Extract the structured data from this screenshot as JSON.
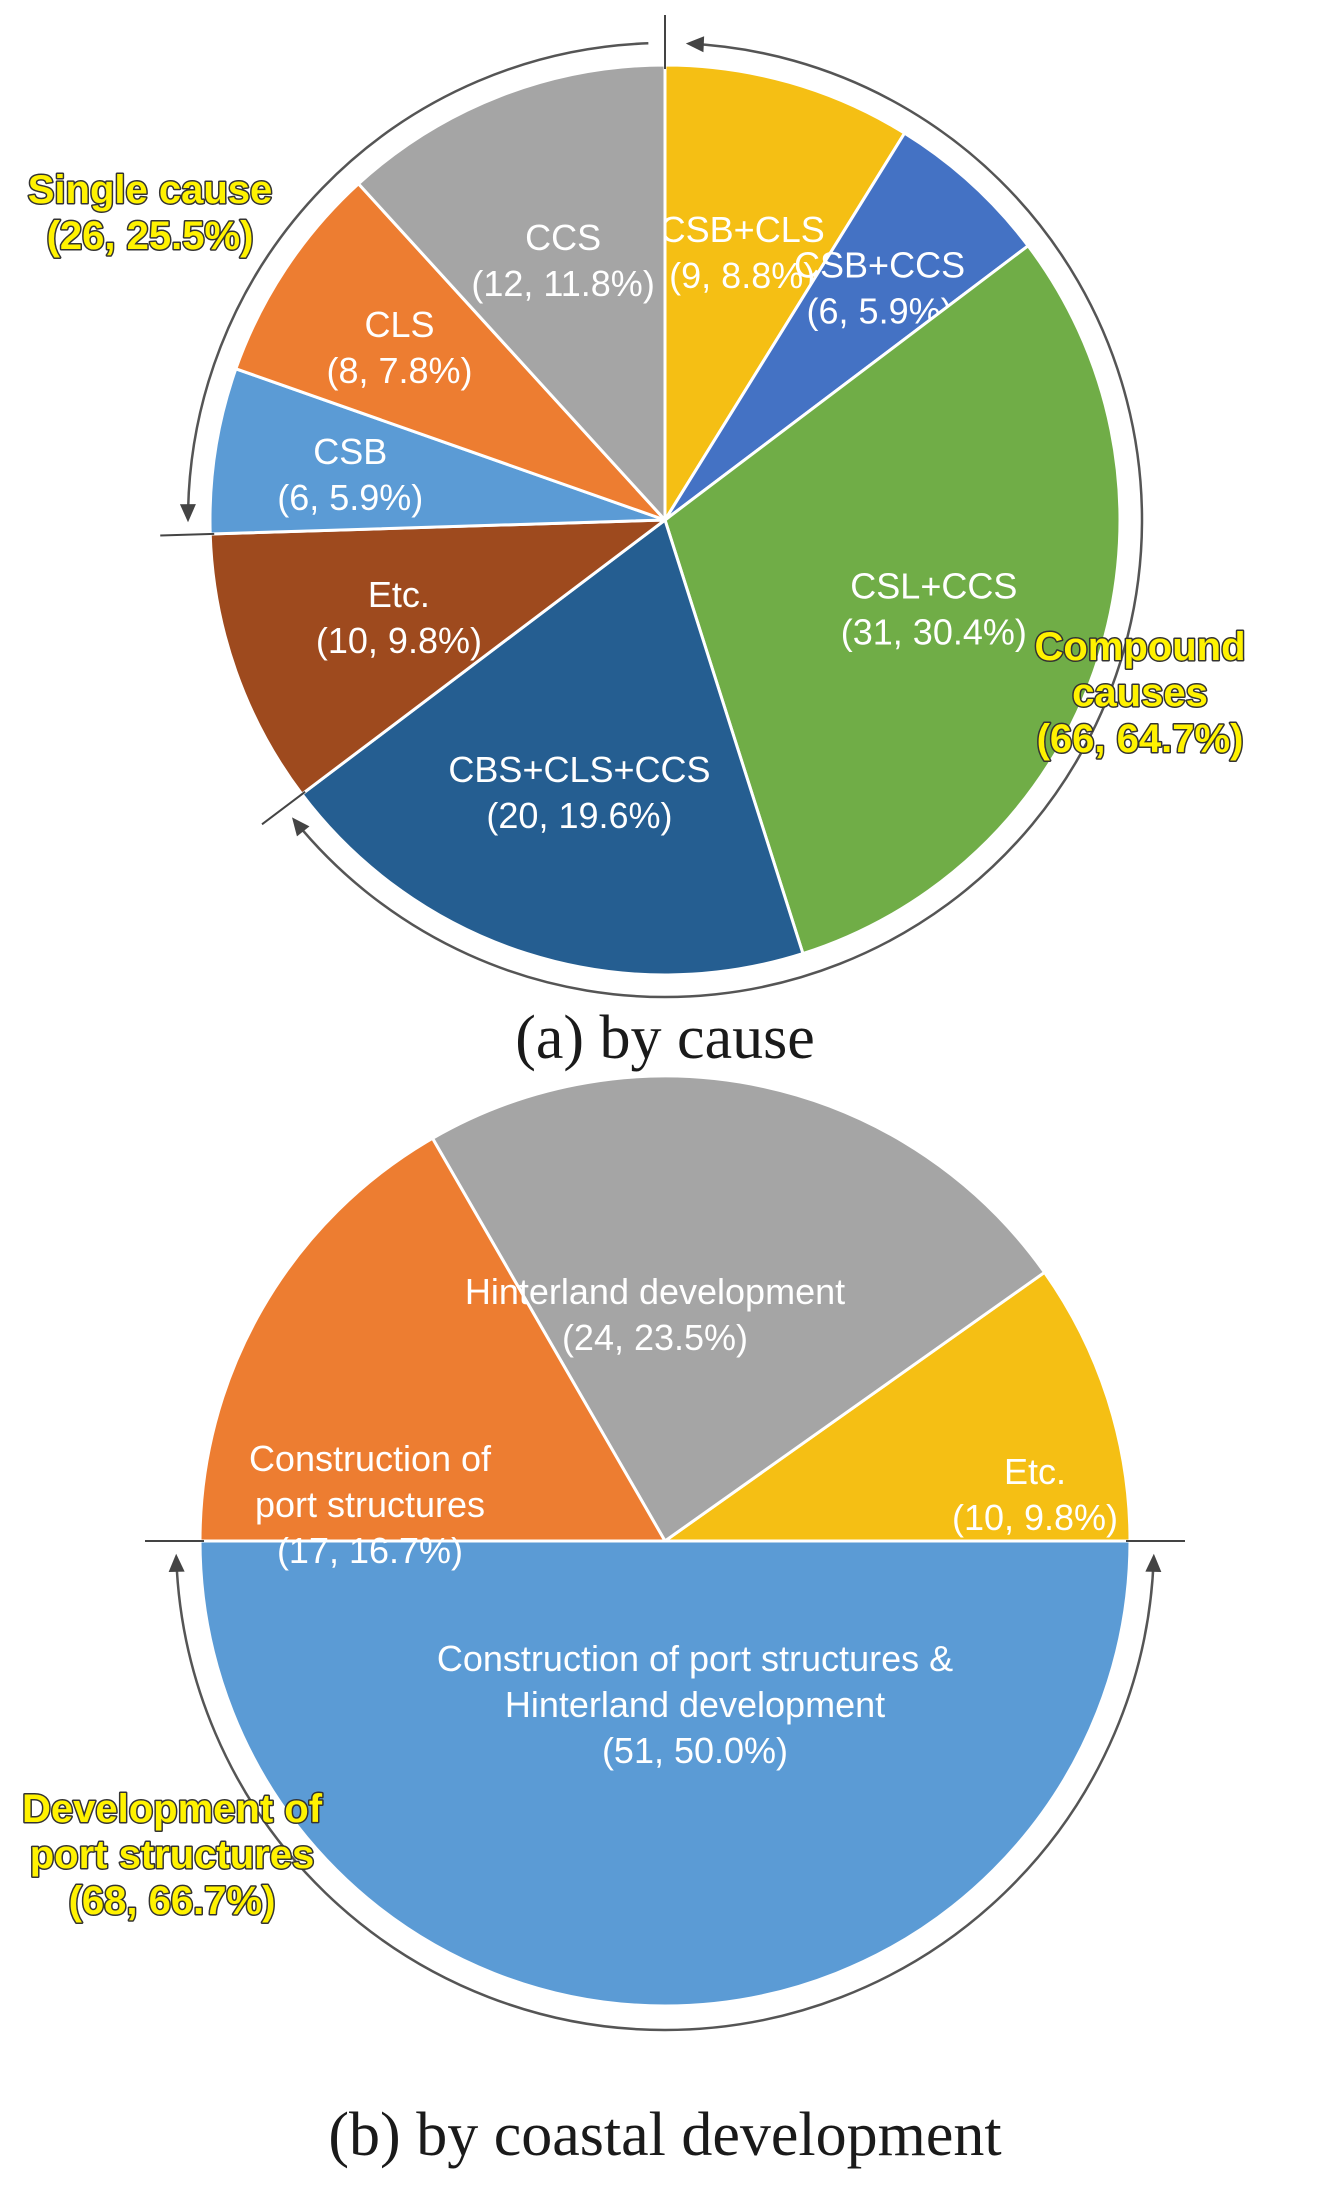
{
  "chart_data": [
    {
      "type": "pie",
      "title": "(a) by cause",
      "start_angle_deg": 0,
      "direction": "clockwise",
      "slices": [
        {
          "name": "CSB+CLS",
          "count": 9,
          "percent": 8.8,
          "value_label": "(9, 8.8%)",
          "color": "#f5bf14"
        },
        {
          "name": "CSB+CCS",
          "count": 6,
          "percent": 5.9,
          "value_label": "(6, 5.9%)",
          "color": "#4472c4"
        },
        {
          "name": "CSL+CCS",
          "count": 31,
          "percent": 30.4,
          "value_label": "(31, 30.4%)",
          "color": "#70ad47"
        },
        {
          "name": "CBS+CLS+CCS",
          "count": 20,
          "percent": 19.6,
          "value_label": "(20, 19.6%)",
          "color": "#255e91"
        },
        {
          "name": "Etc.",
          "count": 10,
          "percent": 9.8,
          "value_label": "(10, 9.8%)",
          "color": "#9e4a1e"
        },
        {
          "name": "CSB",
          "count": 6,
          "percent": 5.9,
          "value_label": "(6, 5.9%)",
          "color": "#5b9bd5"
        },
        {
          "name": "CLS",
          "count": 8,
          "percent": 7.8,
          "value_label": "(8, 7.8%)",
          "color": "#ed7d31"
        },
        {
          "name": "CCS",
          "count": 12,
          "percent": 11.8,
          "value_label": "(12, 11.8%)",
          "color": "#a5a5a5"
        }
      ],
      "groups": [
        {
          "lines": [
            "Single cause",
            "(26, 25.5%)"
          ]
        },
        {
          "lines": [
            "Compound",
            "causes",
            "(66, 64.7%)"
          ]
        }
      ]
    },
    {
      "type": "pie",
      "title": "(b) by coastal development",
      "start_angle_deg": 90,
      "direction": "counterclockwise",
      "slices": [
        {
          "name_lines": [
            "Etc."
          ],
          "count": 10,
          "percent": 9.8,
          "value_label": "(10, 9.8%)",
          "color": "#f5bf14"
        },
        {
          "name_lines": [
            "Hinterland development"
          ],
          "count": 24,
          "percent": 23.5,
          "value_label": "(24, 23.5%)",
          "color": "#a5a5a5"
        },
        {
          "name_lines": [
            "Construction of",
            "port structures"
          ],
          "count": 17,
          "percent": 16.7,
          "value_label": "(17, 16.7%)",
          "color": "#ed7d31"
        },
        {
          "name_lines": [
            "Construction of port structures &",
            "Hinterland development"
          ],
          "count": 51,
          "percent": 50.0,
          "value_label": "(51, 50.0%)",
          "color": "#5b9bd5"
        }
      ],
      "groups": [
        {
          "lines": [
            "Development of",
            "port structures",
            "(68, 66.7%)"
          ]
        }
      ]
    }
  ]
}
